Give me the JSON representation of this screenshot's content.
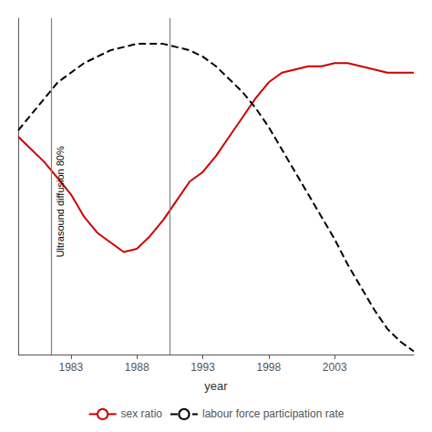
{
  "chart_data": {
    "type": "line",
    "xlabel": "year",
    "xlim": [
      1979,
      2009
    ],
    "xticks": [
      1983,
      1988,
      1993,
      1998,
      2003
    ],
    "ylim": [
      0.0,
      1.05
    ],
    "tick_labels": "x",
    "grid": false,
    "legend": "bottom",
    "annotation": "Ultrasound diffusion 80%",
    "vlines": [
      {
        "x": 1981.5,
        "color": "gray"
      },
      {
        "x": 1990.5,
        "color": "gray"
      }
    ],
    "x": [
      1979,
      1980,
      1981,
      1982,
      1983,
      1984,
      1985,
      1986,
      1987,
      1988,
      1989,
      1990,
      1991,
      1992,
      1993,
      1994,
      1995,
      1996,
      1997,
      1998,
      1999,
      2000,
      2001,
      2002,
      2003,
      2004,
      2005,
      2006,
      2007,
      2008,
      2009
    ],
    "series": [
      {
        "name": "sex ratio",
        "color": "#cc0000",
        "line_style": "solid",
        "values": [
          0.68,
          0.64,
          0.6,
          0.55,
          0.5,
          0.43,
          0.38,
          0.35,
          0.32,
          0.33,
          0.37,
          0.42,
          0.48,
          0.54,
          0.57,
          0.62,
          0.68,
          0.74,
          0.8,
          0.85,
          0.88,
          0.89,
          0.9,
          0.9,
          0.91,
          0.91,
          0.9,
          0.89,
          0.88,
          0.88,
          0.88
        ]
      },
      {
        "name": "labour force participation rate",
        "color": "#000000",
        "line_style": "dashed",
        "values": [
          0.7,
          0.75,
          0.8,
          0.85,
          0.88,
          0.91,
          0.93,
          0.95,
          0.96,
          0.97,
          0.97,
          0.97,
          0.96,
          0.95,
          0.93,
          0.9,
          0.86,
          0.82,
          0.77,
          0.71,
          0.64,
          0.57,
          0.5,
          0.43,
          0.36,
          0.28,
          0.21,
          0.14,
          0.08,
          0.04,
          0.01
        ]
      }
    ]
  }
}
